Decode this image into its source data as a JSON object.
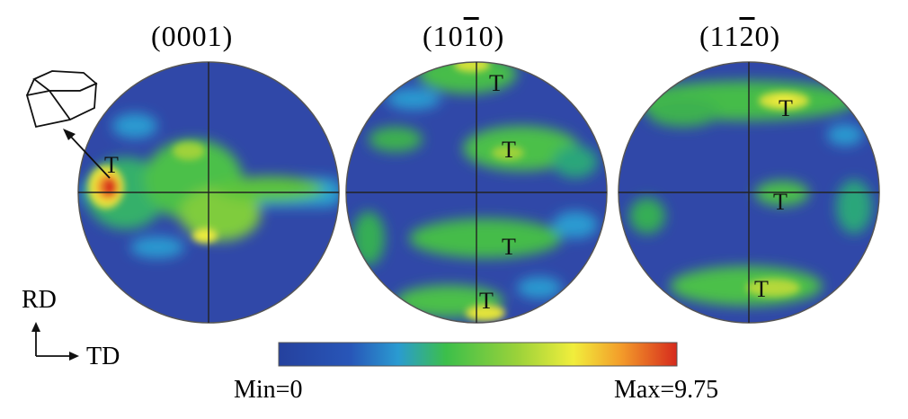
{
  "colors": {
    "scale": [
      "#25419e",
      "#2856b8",
      "#2a9bd1",
      "#3cbf4a",
      "#9bd23a",
      "#f1ee3c",
      "#f39c2a",
      "#d62a1d"
    ],
    "background": "#3048a8"
  },
  "figures": [
    {
      "title_prefix": "(",
      "title_main": "0001",
      "title_bar": "",
      "title_rest": "",
      "title_suffix": ")",
      "marker_labels": [
        "T"
      ]
    },
    {
      "title_prefix": "(",
      "title_main": "10",
      "title_bar": "1",
      "title_rest": "0",
      "title_suffix": ")",
      "marker_labels": [
        "T",
        "T",
        "T",
        "T"
      ]
    },
    {
      "title_prefix": "(",
      "title_main": "11",
      "title_bar": "2",
      "title_rest": "0",
      "title_suffix": ")",
      "marker_labels": [
        "T",
        "T",
        "T"
      ]
    }
  ],
  "axes": {
    "rd": "RD",
    "td": "TD"
  },
  "colorbar": {
    "min_label": "Min=0",
    "max_label": "Max=9.75",
    "min": 0,
    "max": 9.75
  }
}
